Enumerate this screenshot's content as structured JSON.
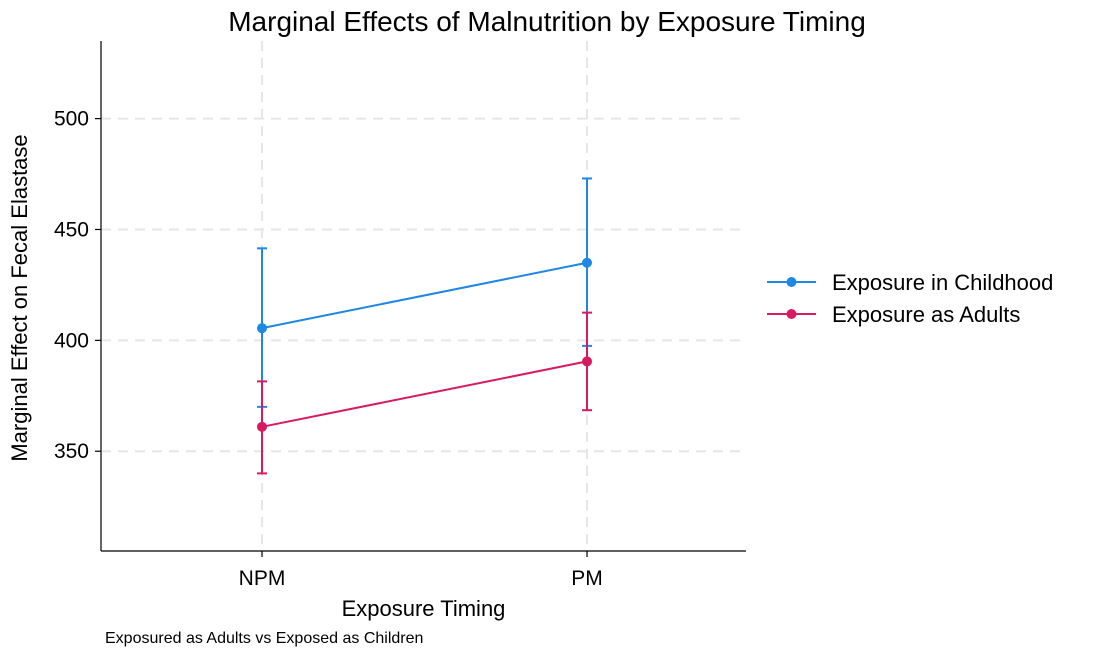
{
  "chart_data": {
    "type": "line",
    "title": "Marginal Effects of Malnutrition by Exposure Timing",
    "xlabel": "Exposure Timing",
    "ylabel": "Marginal Effect on Fecal Elastase",
    "note": "Exposured as Adults vs Exposed as Children",
    "categories": [
      "NPM",
      "PM"
    ],
    "yticks": [
      350,
      400,
      450,
      500
    ],
    "ylim": [
      305,
      535
    ],
    "grid": true,
    "legend_position": "right",
    "series": [
      {
        "name": "Exposure in Childhood",
        "color": "#1e88e5",
        "values": [
          405.5,
          435
        ],
        "ci_low": [
          370,
          397.5
        ],
        "ci_high": [
          441.5,
          473
        ]
      },
      {
        "name": "Exposure as Adults",
        "color": "#d81b60",
        "values": [
          361,
          390.5
        ],
        "ci_low": [
          340,
          368.5
        ],
        "ci_high": [
          381.5,
          412.5
        ]
      }
    ]
  }
}
